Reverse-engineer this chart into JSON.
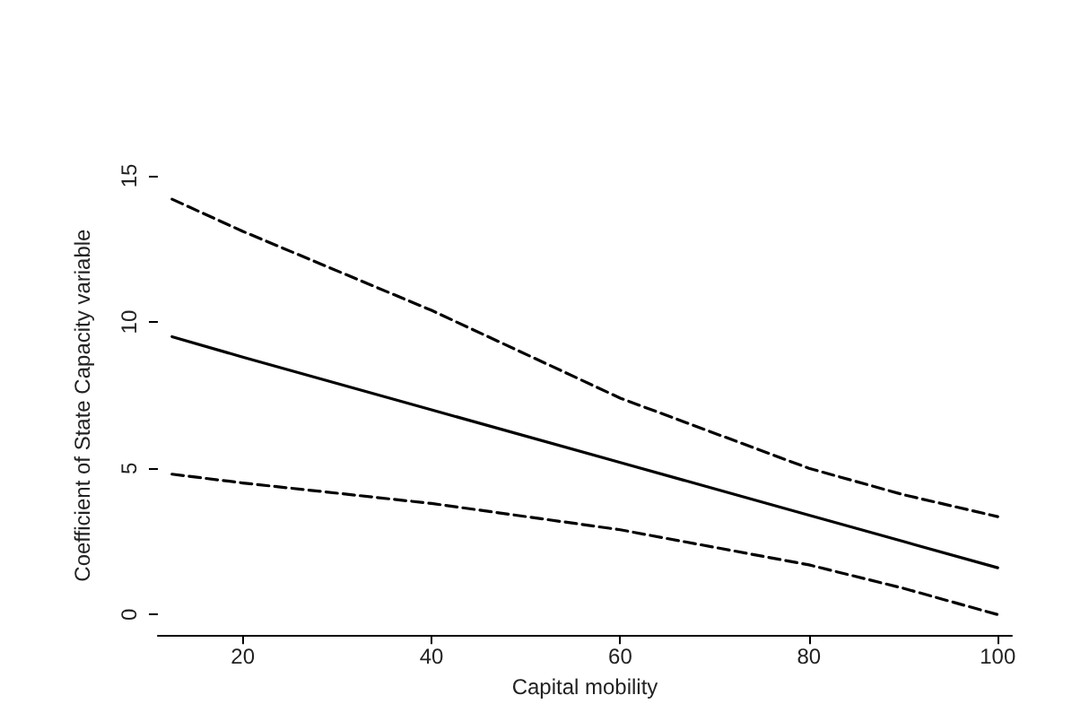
{
  "chart_data": {
    "type": "line",
    "xlabel": "Capital mobility",
    "ylabel": "Coefficient of State Capacity variable",
    "x": [
      12.5,
      20,
      40,
      60,
      80,
      90,
      100
    ],
    "series": [
      {
        "color": "#000000",
        "line_style": "dashed",
        "values": [
          14.2,
          13.1,
          10.4,
          7.4,
          5.0,
          4.1,
          3.35
        ]
      },
      {
        "color": "#000000",
        "line_style": "solid",
        "values": [
          9.5,
          8.8,
          7.0,
          5.2,
          3.4,
          2.5,
          1.6
        ]
      },
      {
        "color": "#000000",
        "line_style": "dashed",
        "values": [
          4.8,
          4.5,
          3.8,
          2.9,
          1.7,
          0.9,
          0
        ]
      }
    ],
    "xlim": [
      11,
      101.5
    ],
    "xticks": [
      20,
      40,
      60,
      80,
      100
    ],
    "ylim": [
      -0.7,
      15
    ],
    "yticks": [
      0,
      5,
      10,
      15
    ],
    "grid": false,
    "marker": "none"
  }
}
